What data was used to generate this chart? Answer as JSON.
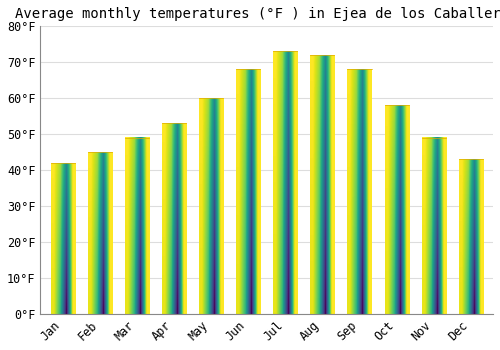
{
  "title": "Average monthly temperatures (°F ) in Ejea de los Caballeros",
  "months": [
    "Jan",
    "Feb",
    "Mar",
    "Apr",
    "May",
    "Jun",
    "Jul",
    "Aug",
    "Sep",
    "Oct",
    "Nov",
    "Dec"
  ],
  "values": [
    42,
    45,
    49,
    53,
    60,
    68,
    73,
    72,
    68,
    58,
    49,
    43
  ],
  "bar_color_bottom": "#F5A800",
  "bar_color_top": "#FFD966",
  "background_color": "#FFFFFF",
  "grid_color": "#DDDDDD",
  "ylim": [
    0,
    80
  ],
  "yticks": [
    0,
    10,
    20,
    30,
    40,
    50,
    60,
    70,
    80
  ],
  "title_fontsize": 10,
  "tick_fontsize": 8.5,
  "bar_width": 0.65
}
